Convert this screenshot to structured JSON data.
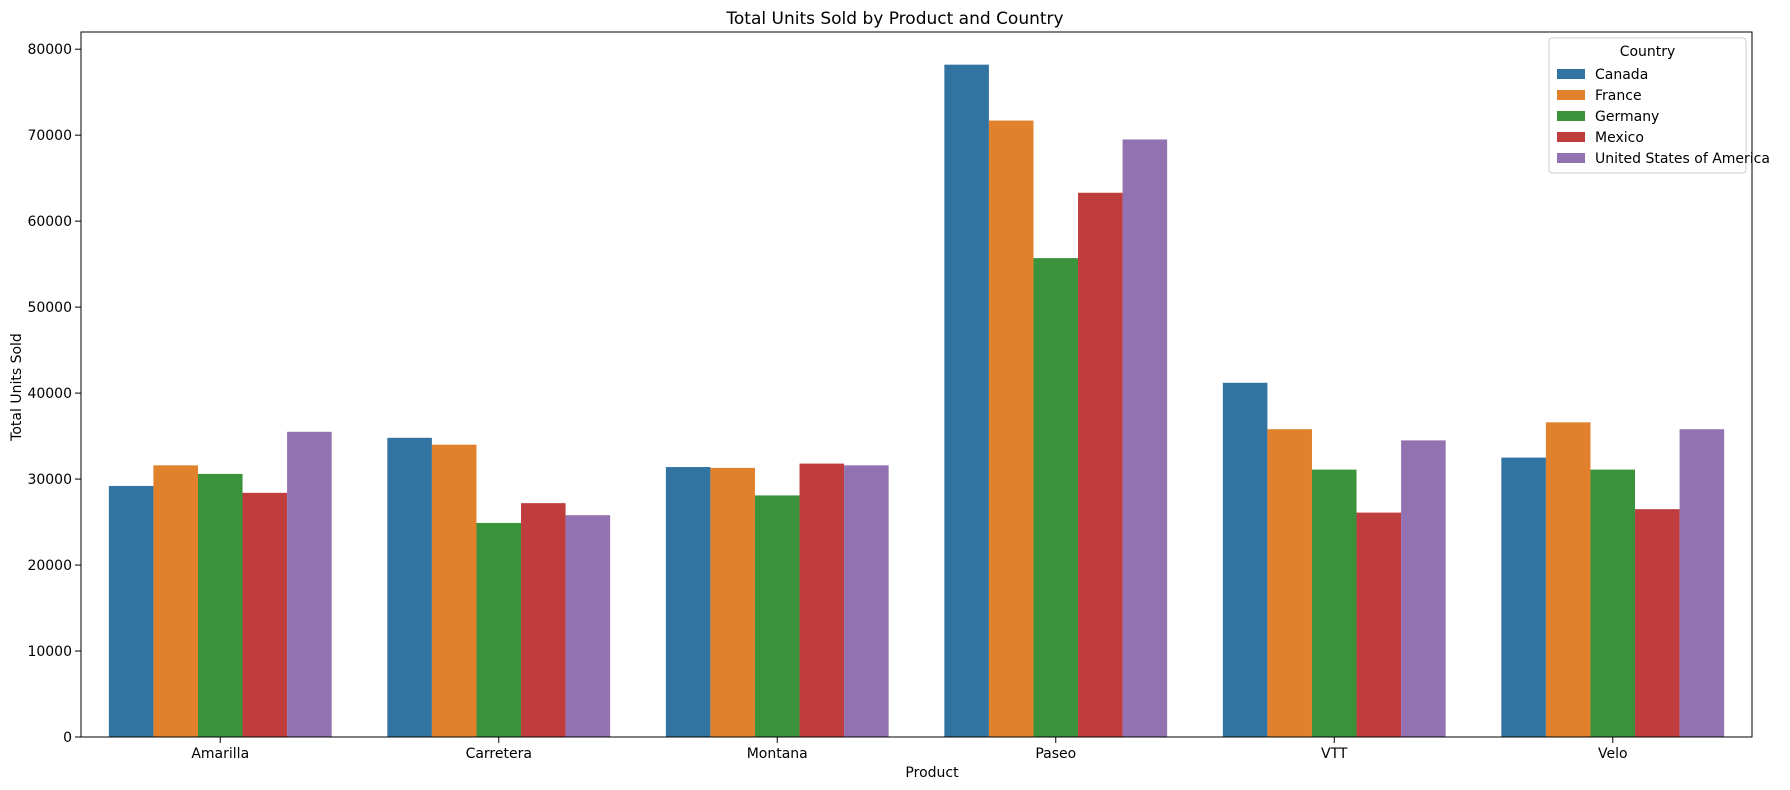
{
  "chart_data": {
    "type": "bar",
    "title": "Total Units Sold by Product and Country",
    "xlabel": "Product",
    "ylabel": "Total Units Sold",
    "categories": [
      "Amarilla",
      "Carretera",
      "Montana",
      "Paseo",
      "VTT",
      "Velo"
    ],
    "ylim": [
      0,
      82000
    ],
    "yticks": [
      0,
      10000,
      20000,
      30000,
      40000,
      50000,
      60000,
      70000,
      80000
    ],
    "grid": false,
    "legend": {
      "title": "Country",
      "placement": "top-right"
    },
    "series": [
      {
        "name": "Canada",
        "color": "#3274a1",
        "values": [
          29200,
          34800,
          31400,
          78200,
          41200,
          32500
        ]
      },
      {
        "name": "France",
        "color": "#e1812c",
        "values": [
          31600,
          34000,
          31300,
          71700,
          35800,
          36600
        ]
      },
      {
        "name": "Germany",
        "color": "#3a923a",
        "values": [
          30600,
          24900,
          28100,
          55700,
          31100,
          31100
        ]
      },
      {
        "name": "Mexico",
        "color": "#c03d3e",
        "values": [
          28400,
          27200,
          31800,
          63300,
          26100,
          26500
        ]
      },
      {
        "name": "United States of America",
        "color": "#9372b2",
        "values": [
          35500,
          25800,
          31600,
          69500,
          34500,
          35800
        ]
      }
    ]
  }
}
